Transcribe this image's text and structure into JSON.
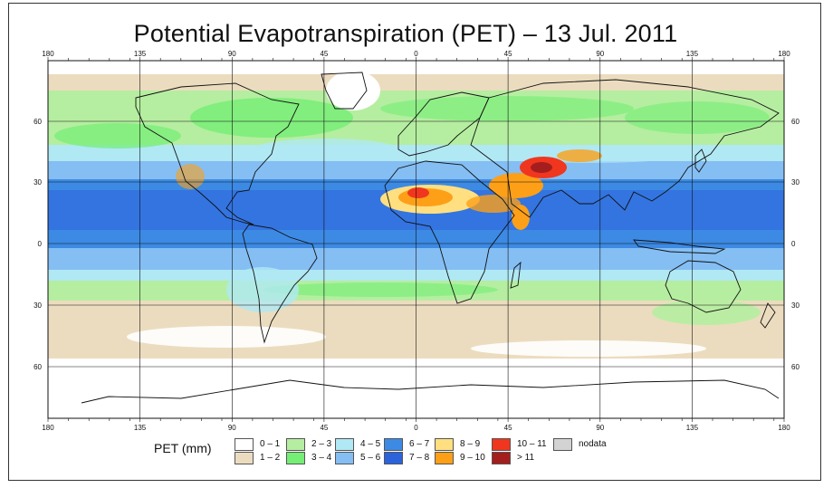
{
  "title": "Potential Evapotranspiration (PET) – 13 Jul. 2011",
  "lon_ticks": [
    "180",
    "135",
    "90",
    "45",
    "0",
    "45",
    "90",
    "135",
    "180"
  ],
  "lat_ticks": [
    "60",
    "30",
    "0",
    "30",
    "60"
  ],
  "legend": {
    "title": "PET (mm)",
    "items": [
      {
        "label": "0 – 1",
        "color": "#ffffff"
      },
      {
        "label": "1 – 2",
        "color": "#ecdcbf"
      },
      {
        "label": "2 – 3",
        "color": "#b5eea0"
      },
      {
        "label": "3 – 4",
        "color": "#74ee74"
      },
      {
        "label": "4 – 5",
        "color": "#b0e8f4"
      },
      {
        "label": "5 – 6",
        "color": "#84bef3"
      },
      {
        "label": "6 – 7",
        "color": "#3c8ae4"
      },
      {
        "label": "7 – 8",
        "color": "#2b63dc"
      },
      {
        "label": "8 – 9",
        "color": "#ffdf80"
      },
      {
        "label": "9 – 10",
        "color": "#fda018"
      },
      {
        "label": "10 – 11",
        "color": "#f0361e"
      },
      {
        "label": "> 11",
        "color": "#a51e1e"
      },
      {
        "label": "nodata",
        "color": "#d3d3d3"
      }
    ]
  }
}
